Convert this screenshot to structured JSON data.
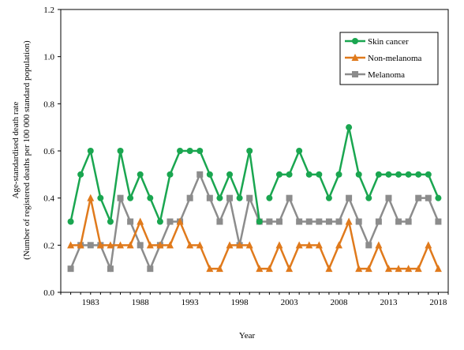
{
  "chart_data": {
    "type": "line",
    "xlabel": "Year",
    "ylabel_line1": "Age-standardised death rate",
    "ylabel_line2": "(Number of registered deaths per 100 000 standard population)",
    "ylim": [
      0,
      1.2
    ],
    "yticks": [
      "0.0",
      "0.2",
      "0.4",
      "0.6",
      "0.8",
      "1.0",
      "1.2"
    ],
    "xlim": [
      1980,
      2019
    ],
    "xtick_labels": [
      "1983",
      "1988",
      "1993",
      "1998",
      "2003",
      "2008",
      "2013",
      "2018"
    ],
    "legend_position": "top-right",
    "x": [
      1981,
      1982,
      1983,
      1984,
      1985,
      1986,
      1987,
      1988,
      1989,
      1990,
      1991,
      1992,
      1993,
      1994,
      1995,
      1996,
      1997,
      1998,
      1999,
      2000,
      2001,
      2002,
      2003,
      2004,
      2005,
      2006,
      2007,
      2008,
      2009,
      2010,
      2011,
      2012,
      2013,
      2014,
      2015,
      2016,
      2017,
      2018
    ],
    "series": [
      {
        "name": "Skin cancer",
        "color": "#1aa650",
        "marker": "circle",
        "segments": [
          [
            0.3,
            0.5,
            0.6,
            0.4,
            0.3,
            0.6,
            0.4,
            0.5,
            0.4,
            0.3,
            0.5,
            0.6,
            0.6,
            0.6,
            0.5,
            0.4,
            0.5,
            0.4,
            0.6,
            0.3,
            null,
            null,
            null,
            null,
            null,
            null,
            null,
            null,
            null,
            null,
            null,
            null,
            null,
            null,
            null,
            null,
            null,
            null
          ],
          [
            null,
            null,
            null,
            null,
            null,
            null,
            null,
            null,
            null,
            null,
            null,
            null,
            null,
            null,
            null,
            null,
            null,
            null,
            null,
            null,
            0.4,
            0.5,
            0.5,
            0.6,
            0.5,
            0.5,
            0.4,
            0.5,
            0.7,
            0.5,
            0.4,
            0.5,
            0.5,
            0.5,
            0.5,
            0.5,
            0.5,
            0.4
          ]
        ]
      },
      {
        "name": "Non-melanoma",
        "color": "#e07a1c",
        "marker": "triangle",
        "segments": [
          [
            0.2,
            0.2,
            0.4,
            0.2,
            0.2,
            0.2,
            0.2,
            0.3,
            0.2,
            0.2,
            0.2,
            0.3,
            0.2,
            0.2,
            0.1,
            0.1,
            0.2,
            0.2,
            0.2,
            0.1,
            0.1,
            0.2,
            0.1,
            0.2,
            0.2,
            0.2,
            0.1,
            0.2,
            0.3,
            0.1,
            0.1,
            0.2,
            0.1,
            0.1,
            0.1,
            0.1,
            0.2,
            0.1
          ]
        ]
      },
      {
        "name": "Melanoma",
        "color": "#8c8c8c",
        "marker": "square",
        "segments": [
          [
            0.1,
            0.2,
            0.2,
            0.2,
            0.1,
            0.4,
            0.3,
            0.2,
            0.1,
            0.2,
            0.3,
            0.3,
            0.4,
            0.5,
            0.4,
            0.3,
            0.4,
            0.2,
            0.4,
            0.3,
            0.3,
            0.3,
            0.4,
            0.3,
            0.3,
            0.3,
            0.3,
            0.3,
            0.4,
            0.3,
            0.2,
            0.3,
            0.4,
            0.3,
            0.3,
            0.4,
            0.4,
            0.3
          ]
        ]
      }
    ]
  }
}
